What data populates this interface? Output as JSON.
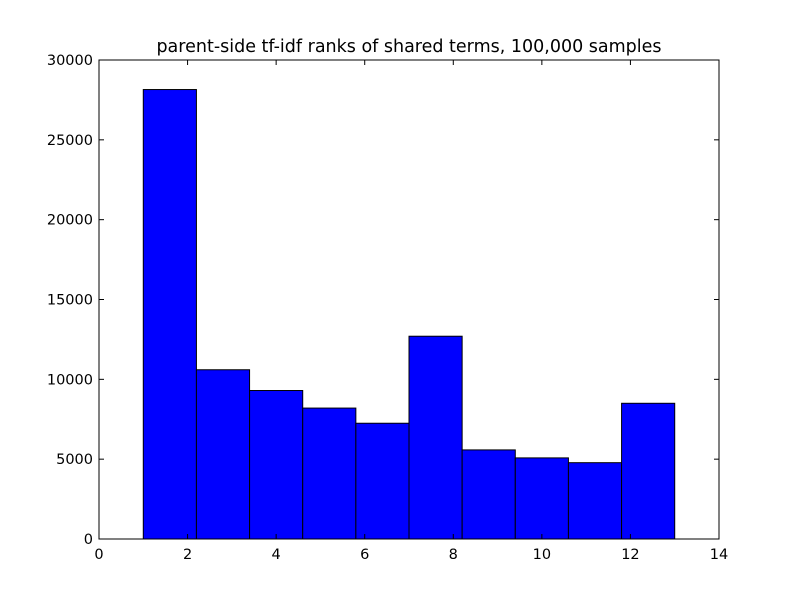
{
  "chart_data": {
    "type": "bar",
    "title": "parent-side tf-idf ranks of shared terms, 100,000 samples",
    "xlabel": "",
    "ylabel": "",
    "xlim": [
      0,
      14
    ],
    "ylim": [
      0,
      30000
    ],
    "x_ticks": [
      0,
      2,
      4,
      6,
      8,
      10,
      12,
      14
    ],
    "y_ticks": [
      0,
      5000,
      10000,
      15000,
      20000,
      25000,
      30000
    ],
    "bin_edges": [
      1,
      2.2,
      3.4,
      4.6,
      5.8,
      7,
      8.2,
      9.4,
      10.6,
      11.8,
      13
    ],
    "values": [
      28150,
      10600,
      9300,
      8200,
      7250,
      12700,
      5580,
      5080,
      4780,
      8500
    ],
    "bar_color": "#0000ff",
    "edge_color": "#000000",
    "grid": false,
    "legend": "none"
  }
}
